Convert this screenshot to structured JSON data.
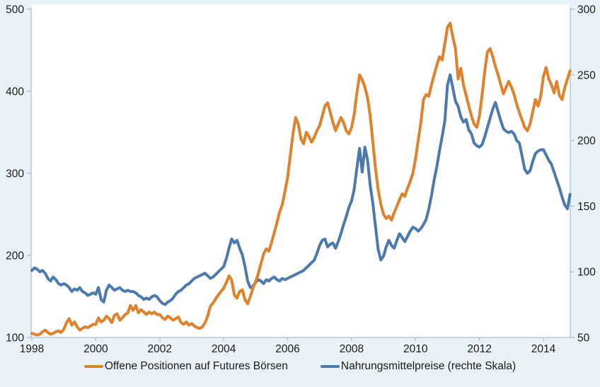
{
  "legend": {
    "items": [
      {
        "label": "Offene Positionen auf Futures Börsen",
        "color": "#E0812B"
      },
      {
        "label": "Nahrungsmittelpreise (rechte Skala)",
        "color": "#4C7AAE"
      }
    ]
  },
  "colors": {
    "background": "#E9F2F7",
    "plot_background": "#FFFFFF",
    "axis": "#AEC0CA",
    "text": "#1a1a1a",
    "series_orange": "#E0812B",
    "series_blue": "#4C7AAE"
  },
  "chart_data": {
    "type": "line",
    "title": "",
    "xlabel": "",
    "ylabel_left": "",
    "ylabel_right": "",
    "x_start_year": 1998,
    "x_step_months": 1,
    "x_end_approx": 2014.83,
    "x_ticks": [
      1998,
      2000,
      2002,
      2004,
      2006,
      2008,
      2010,
      2012,
      2014
    ],
    "left_axis": {
      "range": [
        100,
        500
      ],
      "ticks": [
        100,
        200,
        300,
        400,
        500
      ]
    },
    "right_axis": {
      "range": [
        50,
        300
      ],
      "ticks": [
        50,
        100,
        150,
        200,
        250,
        300
      ]
    },
    "grid": false,
    "legend_position": "bottom",
    "series": [
      {
        "name": "Offene Positionen auf Futures Börsen",
        "axis": "left",
        "color": "#E0812B",
        "values": [
          105,
          104,
          103,
          104,
          107,
          109,
          106,
          104,
          105,
          107,
          108,
          106,
          110,
          118,
          123,
          115,
          119,
          113,
          109,
          111,
          113,
          112,
          114,
          116,
          116,
          124,
          119,
          121,
          126,
          123,
          118,
          127,
          129,
          121,
          124,
          128,
          130,
          139,
          133,
          139,
          130,
          134,
          131,
          128,
          131,
          129,
          131,
          128,
          128,
          124,
          122,
          126,
          124,
          121,
          123,
          125,
          118,
          116,
          119,
          115,
          117,
          114,
          112,
          111,
          113,
          118,
          126,
          138,
          142,
          147,
          152,
          156,
          160,
          167,
          175,
          170,
          152,
          148,
          156,
          158,
          146,
          141,
          150,
          160,
          168,
          178,
          190,
          202,
          208,
          205,
          216,
          228,
          240,
          253,
          262,
          278,
          295,
          322,
          348,
          368,
          360,
          342,
          336,
          350,
          345,
          338,
          344,
          352,
          358,
          370,
          382,
          386,
          374,
          362,
          352,
          360,
          368,
          362,
          352,
          348,
          356,
          372,
          398,
          420,
          414,
          405,
          392,
          370,
          338,
          305,
          280,
          262,
          250,
          245,
          248,
          243,
          252,
          260,
          268,
          275,
          272,
          282,
          290,
          300,
          318,
          340,
          362,
          390,
          396,
          394,
          408,
          420,
          432,
          442,
          438,
          458,
          478,
          483,
          466,
          452,
          415,
          428,
          408,
          395,
          382,
          370,
          360,
          356,
          370,
          396,
          425,
          448,
          452,
          442,
          430,
          420,
          408,
          397,
          405,
          412,
          405,
          396,
          384,
          374,
          365,
          356,
          352,
          360,
          375,
          390,
          382,
          394,
          418,
          429,
          415,
          408,
          398,
          412,
          395,
          390,
          404,
          415,
          425
        ]
      },
      {
        "name": "Nahrungsmittelpreise (rechte Skala)",
        "axis": "right",
        "color": "#4C7AAE",
        "values": [
          101,
          103,
          102,
          100,
          101,
          99,
          95,
          93,
          96,
          94,
          91,
          90,
          91,
          90,
          88,
          85,
          87,
          86,
          88,
          85,
          84,
          82,
          83,
          84,
          83,
          88,
          79,
          77,
          86,
          90,
          88,
          86,
          87,
          88,
          86,
          85,
          86,
          85,
          85,
          84,
          82,
          81,
          79,
          80,
          79,
          81,
          82,
          81,
          78,
          76,
          75,
          77,
          78,
          80,
          83,
          85,
          86,
          88,
          90,
          91,
          93,
          95,
          96,
          97,
          98,
          99,
          97,
          95,
          96,
          98,
          100,
          102,
          104,
          110,
          118,
          125,
          122,
          124,
          118,
          113,
          104,
          93,
          88,
          89,
          92,
          94,
          93,
          91,
          94,
          93,
          95,
          96,
          94,
          93,
          95,
          94,
          95,
          96,
          97,
          98,
          99,
          100,
          101,
          103,
          105,
          107,
          109,
          114,
          120,
          124,
          125,
          119,
          121,
          122,
          118,
          123,
          129,
          136,
          142,
          149,
          154,
          163,
          179,
          194,
          176,
          195,
          185,
          166,
          152,
          134,
          117,
          109,
          112,
          119,
          124,
          120,
          118,
          124,
          129,
          126,
          123,
          127,
          131,
          134,
          133,
          131,
          133,
          136,
          140,
          148,
          158,
          170,
          180,
          192,
          203,
          215,
          242,
          250,
          240,
          230,
          226,
          218,
          214,
          216,
          208,
          205,
          198,
          196,
          195,
          197,
          203,
          210,
          217,
          224,
          229,
          222,
          215,
          209,
          207,
          206,
          207,
          205,
          200,
          198,
          188,
          178,
          175,
          177,
          184,
          190,
          192,
          193,
          193,
          189,
          185,
          182,
          176,
          170,
          164,
          157,
          151,
          148,
          159
        ]
      }
    ]
  }
}
